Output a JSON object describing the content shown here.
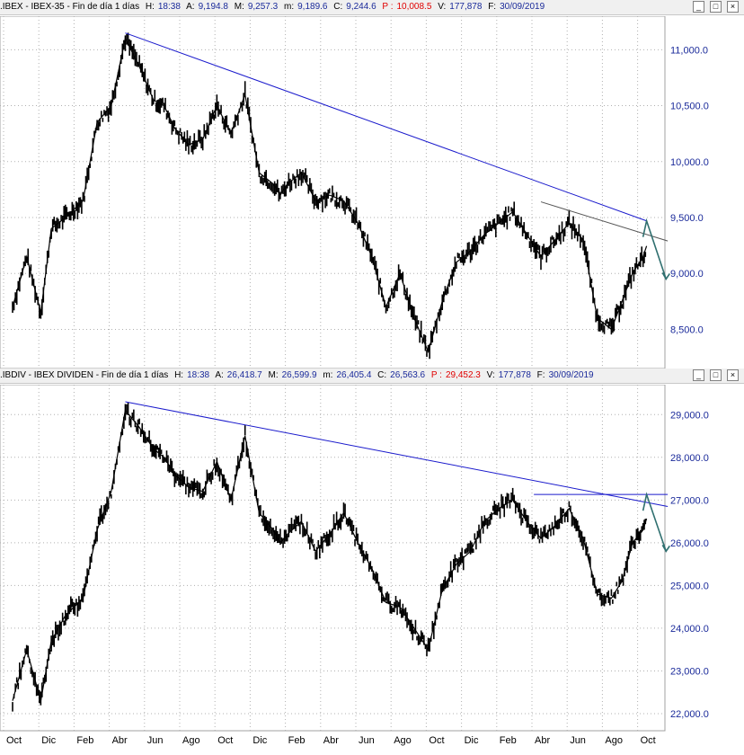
{
  "panels": [
    {
      "header": {
        "ticker": ".IBEX - IBEX-35 - Fin de día 1 días",
        "h_label": "H:",
        "h_value": "18:38",
        "a_label": "A:",
        "a_value": "9,194.8",
        "m_label": "M:",
        "m_value": "9,257.3",
        "min_label": "m:",
        "min_value": "9,189.6",
        "c_label": "C:",
        "c_value": "9,244.6",
        "p_label": "P :",
        "p_value": "10,008.5",
        "v_label": "V:",
        "v_value": "177,878",
        "f_label": "F:",
        "f_value": "30/09/2019"
      }
    },
    {
      "header": {
        "ticker": ".IBDIV - IBEX DIVIDEN - Fin de día 1 días",
        "h_label": "H:",
        "h_value": "18:38",
        "a_label": "A:",
        "a_value": "26,418.7",
        "m_label": "M:",
        "m_value": "26,599.9",
        "min_label": "m:",
        "min_value": "26,405.4",
        "c_label": "C:",
        "c_value": "26,563.6",
        "p_label": "P :",
        "p_value": "29,452.3",
        "v_label": "V:",
        "v_value": "177,878",
        "f_label": "F:",
        "f_value": "30/09/2019"
      }
    }
  ],
  "window_buttons": [
    "_",
    "□",
    "×"
  ],
  "colors": {
    "price": "#000000",
    "trendline": "#1a1acc",
    "grey_trend": "#555555",
    "arrow": "#2f6f6f",
    "axis_text": "#1a2a9a",
    "grid": "#b0b0b0"
  },
  "chart_data": [
    {
      "type": "line",
      "series_style": "ohlc-bars",
      "title": ".IBEX - IBEX-35",
      "x_ticks": [
        "Oct",
        "Dic",
        "Feb",
        "Abr",
        "Jun",
        "Ago",
        "Oct",
        "Dic",
        "Feb",
        "Abr",
        "Jun",
        "Ago",
        "Oct",
        "Dic",
        "Feb",
        "Abr",
        "Jun",
        "Ago",
        "Oct"
      ],
      "y_ticks": [
        "11,000.0",
        "10,500.0",
        "10,000.0",
        "9,500.0",
        "9,000.0",
        "8,500.0"
      ],
      "y_tick_values": [
        11000,
        10500,
        10000,
        9500,
        9000,
        8500
      ],
      "ylim": [
        8150,
        11300
      ],
      "grid": true,
      "series": [
        {
          "x": [
            0,
            0.4,
            0.8,
            1.1,
            1.5,
            2.0,
            2.4,
            2.8,
            3.2,
            3.6,
            4.0,
            4.3,
            4.6,
            5.0,
            5.4,
            5.8,
            6.2,
            6.6,
            7.0,
            7.4,
            7.6,
            7.8,
            8.2,
            8.6,
            9.0,
            9.4,
            9.8,
            10.2,
            10.6,
            11.0,
            11.4,
            11.8,
            12.2,
            12.6,
            13.0,
            13.4,
            13.8,
            14.2,
            14.6,
            15.0,
            15.4,
            15.8,
            16.2,
            16.6,
            17.0,
            17.3,
            17.6,
            17.9,
            18.0
          ],
          "y": [
            8700,
            9150,
            8650,
            9400,
            9500,
            9650,
            10350,
            10500,
            11100,
            10850,
            10550,
            10500,
            10300,
            10150,
            10200,
            10500,
            10250,
            10600,
            9900,
            9800,
            9700,
            9800,
            9900,
            9650,
            9700,
            9650,
            9450,
            9150,
            8700,
            9000,
            8600,
            8300,
            8750,
            9100,
            9200,
            9350,
            9450,
            9550,
            9350,
            9150,
            9300,
            9450,
            9300,
            8600,
            8500,
            8750,
            9000,
            9150,
            9245
          ]
        }
      ],
      "annotations": [
        {
          "kind": "trendline",
          "from": [
            3.2,
            11150
          ],
          "to": [
            18.0,
            9470
          ]
        },
        {
          "kind": "trendline",
          "from": [
            15.0,
            9640
          ],
          "to": [
            18.6,
            9290
          ]
        },
        {
          "kind": "arrow",
          "from": [
            18.0,
            9470
          ],
          "via": [
            18.4,
            8950
          ],
          "note": "projected decline"
        }
      ]
    },
    {
      "type": "line",
      "series_style": "ohlc-bars",
      "title": ".IBDIV - IBEX DIVIDEN",
      "x_ticks": [
        "Oct",
        "Dic",
        "Feb",
        "Abr",
        "Jun",
        "Ago",
        "Oct",
        "Dic",
        "Feb",
        "Abr",
        "Jun",
        "Ago",
        "Oct",
        "Dic",
        "Feb",
        "Abr",
        "Jun",
        "Ago",
        "Oct"
      ],
      "y_ticks": [
        "29,000.0",
        "28,000.0",
        "27,000.0",
        "26,000.0",
        "25,000.0",
        "24,000.0",
        "23,000.0",
        "22,000.0"
      ],
      "y_tick_values": [
        29000,
        28000,
        27000,
        26000,
        25000,
        24000,
        23000,
        22000
      ],
      "ylim": [
        21600,
        29700
      ],
      "grid": true,
      "series": [
        {
          "x": [
            0,
            0.4,
            0.8,
            1.1,
            1.5,
            2.0,
            2.4,
            2.8,
            3.2,
            3.6,
            4.0,
            4.3,
            4.6,
            5.0,
            5.4,
            5.8,
            6.2,
            6.6,
            7.0,
            7.4,
            7.6,
            7.8,
            8.2,
            8.6,
            9.0,
            9.4,
            9.8,
            10.2,
            10.6,
            11.0,
            11.4,
            11.8,
            12.2,
            12.6,
            13.0,
            13.4,
            13.8,
            14.2,
            14.6,
            15.0,
            15.4,
            15.8,
            16.2,
            16.6,
            17.0,
            17.3,
            17.6,
            17.9,
            18.0
          ],
          "y": [
            22300,
            23500,
            22300,
            23700,
            24300,
            24700,
            26300,
            27200,
            29100,
            28700,
            28200,
            28000,
            27600,
            27300,
            27200,
            27900,
            27000,
            28500,
            26700,
            26300,
            26000,
            26200,
            26500,
            25800,
            26200,
            26700,
            26000,
            25400,
            24600,
            24500,
            24000,
            23500,
            24900,
            25500,
            25800,
            26500,
            26800,
            27000,
            26500,
            26100,
            26400,
            26800,
            26100,
            24800,
            24700,
            25100,
            26000,
            26300,
            26564
          ]
        }
      ],
      "annotations": [
        {
          "kind": "trendline",
          "from": [
            3.2,
            29300
          ],
          "to": [
            18.6,
            26850
          ]
        },
        {
          "kind": "trendline",
          "from": [
            14.8,
            27130
          ],
          "to": [
            18.6,
            27130
          ]
        },
        {
          "kind": "arrow",
          "from": [
            18.0,
            27130
          ],
          "via": [
            18.4,
            25800
          ],
          "note": "projected decline"
        }
      ]
    }
  ]
}
